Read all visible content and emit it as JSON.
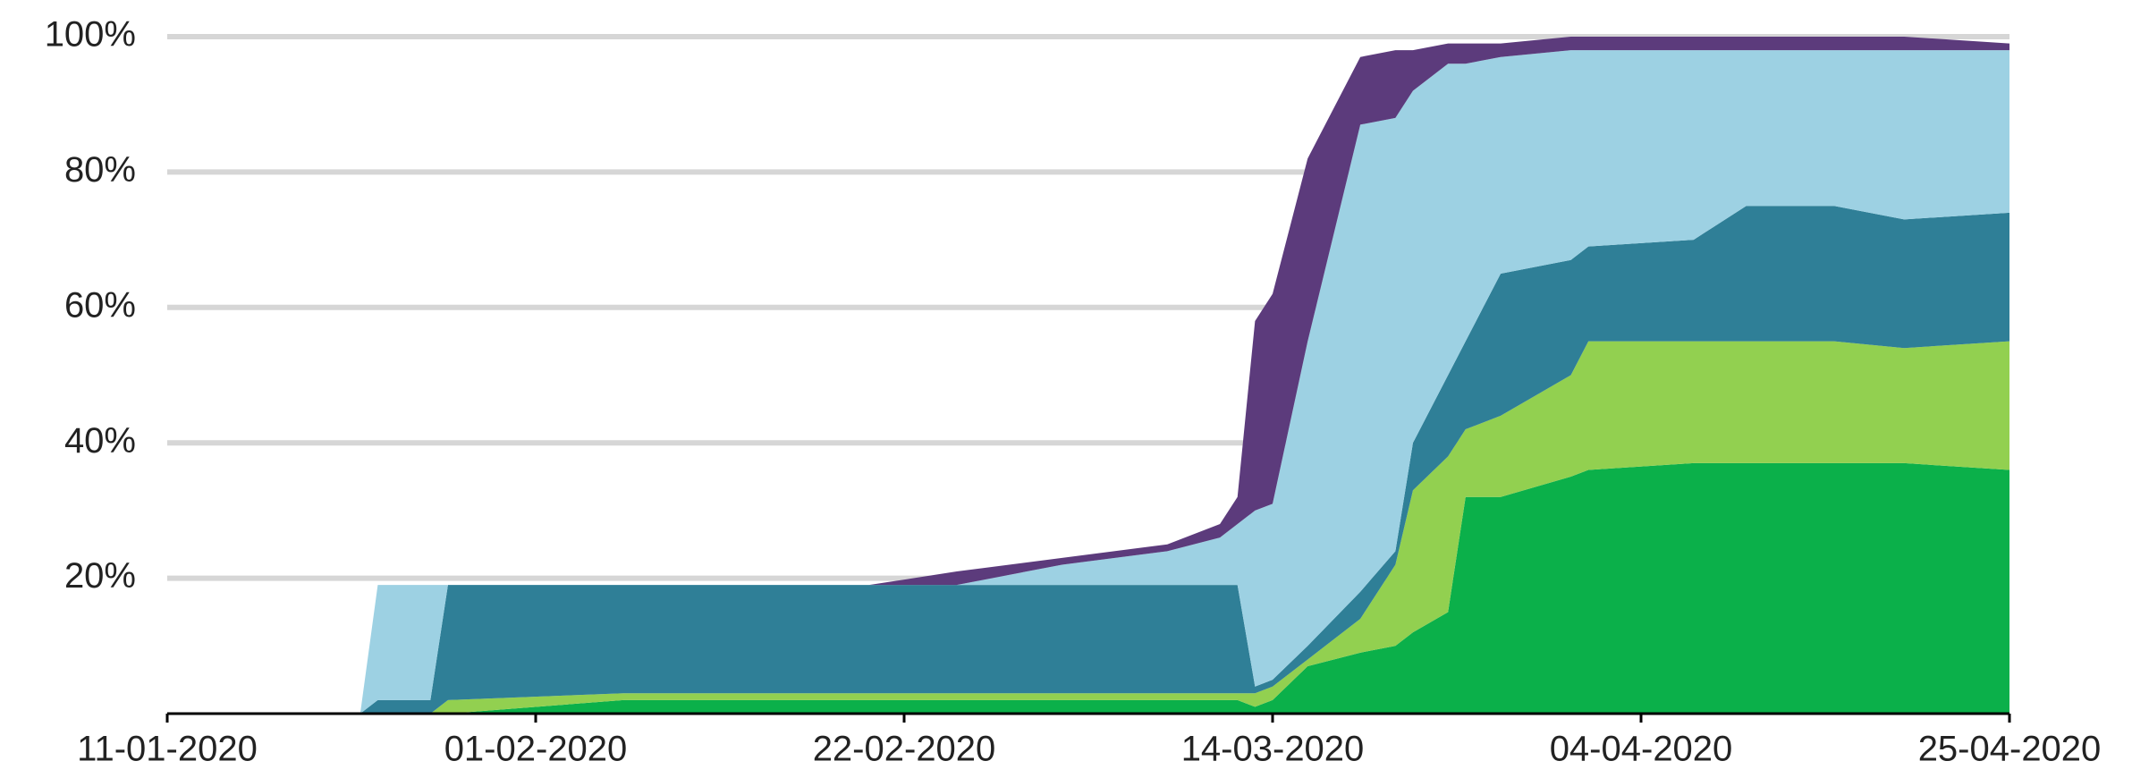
{
  "chart_data": {
    "type": "stacked_area",
    "x": [
      "11-01-2020",
      "22-01-2020",
      "23-01-2020",
      "26-01-2020",
      "27-01-2020",
      "06-02-2020",
      "20-02-2020",
      "25-02-2020",
      "02-03-2020",
      "08-03-2020",
      "11-03-2020",
      "12-03-2020",
      "13-03-2020",
      "14-03-2020",
      "16-03-2020",
      "19-03-2020",
      "21-03-2020",
      "22-03-2020",
      "24-03-2020",
      "25-03-2020",
      "27-03-2020",
      "31-03-2020",
      "01-04-2020",
      "07-04-2020",
      "10-04-2020",
      "15-04-2020",
      "19-04-2020",
      "25-04-2020"
    ],
    "series": [
      {
        "color": "#0bb04a",
        "values": [
          0,
          0,
          0,
          0,
          0,
          2,
          2,
          2,
          2,
          2,
          2,
          2,
          1,
          2,
          7,
          9,
          10,
          12,
          15,
          32,
          32,
          35,
          36,
          37,
          37,
          37,
          37,
          36
        ]
      },
      {
        "color": "#92d050",
        "values": [
          0,
          0,
          0,
          0,
          2,
          1,
          1,
          1,
          1,
          1,
          1,
          1,
          2,
          2,
          1,
          5,
          12,
          21,
          23,
          10,
          12,
          15,
          19,
          18,
          18,
          18,
          17,
          19
        ]
      },
      {
        "color": "#2f7f97",
        "values": [
          0,
          0,
          2,
          2,
          17,
          16,
          16,
          16,
          16,
          16,
          16,
          16,
          1,
          1,
          2,
          4,
          2,
          7,
          12,
          13,
          21,
          17,
          14,
          15,
          20,
          20,
          19,
          19
        ]
      },
      {
        "color": "#9dd1e3",
        "values": [
          0,
          0,
          17,
          17,
          0,
          0,
          0,
          0,
          3,
          5,
          7,
          9,
          26,
          26,
          45,
          69,
          64,
          52,
          46,
          41,
          32,
          31,
          29,
          28,
          23,
          23,
          25,
          24
        ]
      },
      {
        "color": "#5c3b7c",
        "values": [
          0,
          0,
          0,
          0,
          0,
          0,
          0,
          2,
          1,
          1,
          2,
          4,
          28,
          31,
          27,
          10,
          10,
          6,
          3,
          3,
          2,
          2,
          2,
          2,
          2,
          2,
          2,
          1
        ]
      }
    ],
    "xlim": [
      "11-01-2020",
      "25-04-2020"
    ],
    "xticks": [
      "11-01-2020",
      "01-02-2020",
      "22-02-2020",
      "14-03-2020",
      "04-04-2020",
      "25-04-2020"
    ],
    "ylim": [
      0,
      100
    ],
    "yticks": [
      {
        "value": 20,
        "label": "20%"
      },
      {
        "value": 40,
        "label": "40%"
      },
      {
        "value": 60,
        "label": "60%"
      },
      {
        "value": 80,
        "label": "80%"
      },
      {
        "value": 100,
        "label": "100%"
      }
    ],
    "grid": true
  }
}
